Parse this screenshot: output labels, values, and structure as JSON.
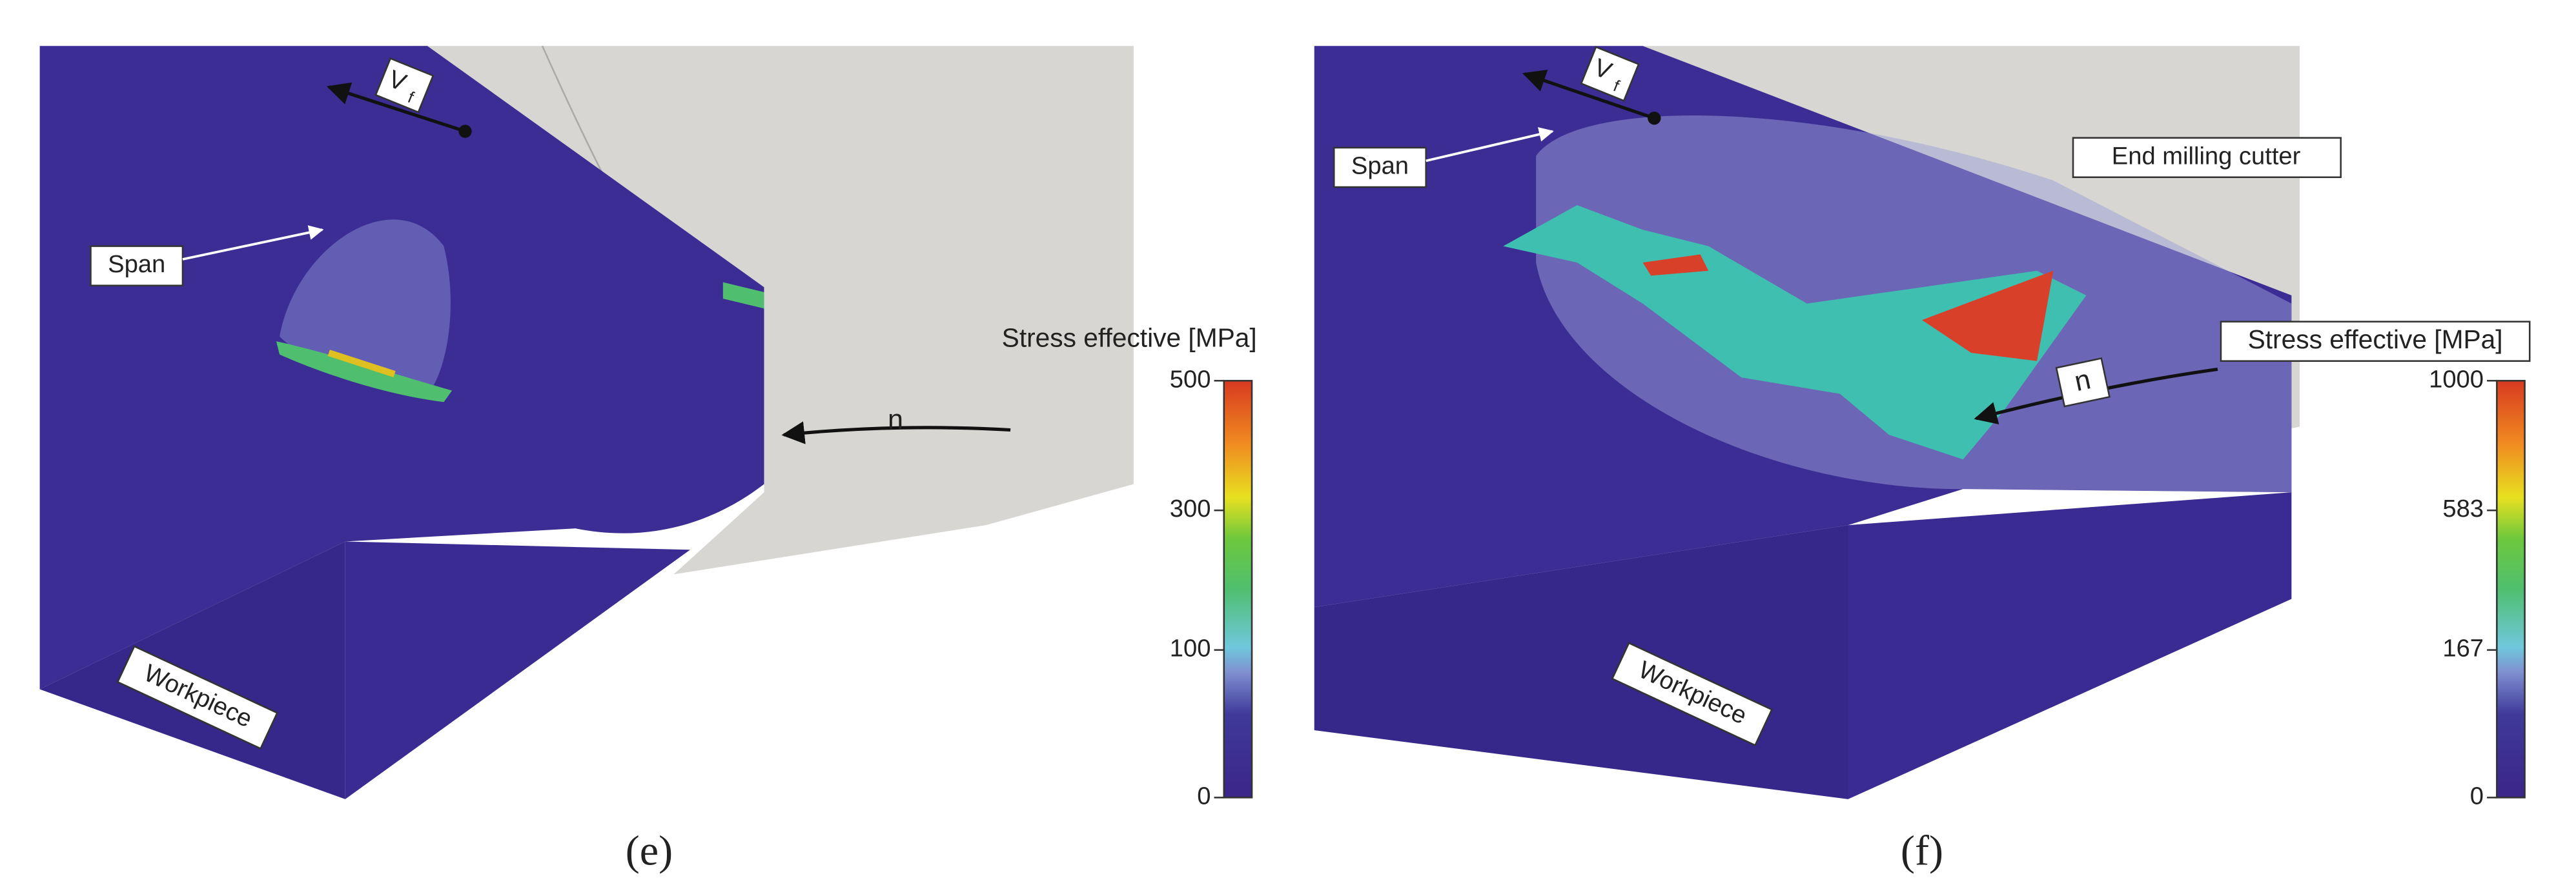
{
  "panels": [
    {
      "caption": "(e)",
      "labels": {
        "span": "Span",
        "workpiece": "Workpiece",
        "stress": "Stress effective [MPa]",
        "rotation": "n",
        "feed": "V",
        "feed_subscript": "f"
      },
      "colorbar_ticks": [
        0,
        100,
        300,
        500
      ]
    },
    {
      "caption": "(f)",
      "labels": {
        "span": "Span",
        "workpiece": "Workpiece",
        "stress": "Stress effective [MPa]",
        "rotation": "n",
        "feed": "V",
        "feed_subscript": "f",
        "cutter": "End milling cutter"
      },
      "colorbar_ticks": [
        0,
        167,
        583,
        1000
      ]
    }
  ]
}
